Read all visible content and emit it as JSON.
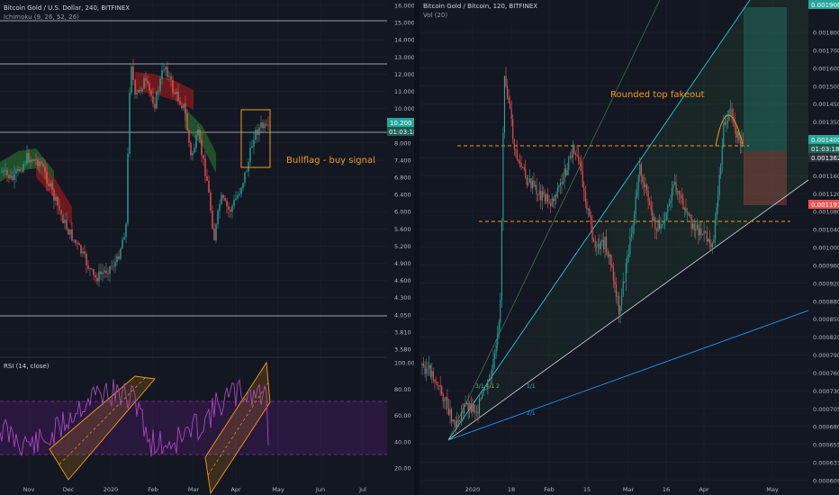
{
  "left_chart": {
    "title": "Bitcoin Gold / U.S. Dollar, 240, BITFINEX",
    "indicator": "Ichimoku (9, 26, 52, 26)",
    "price_axis": [
      "16.000",
      "15.000",
      "14.000",
      "13.000",
      "12.000",
      "11.000",
      "10.000",
      "9.000",
      "8.000",
      "7.400",
      "6.800",
      "6.400",
      "6.000",
      "5.600",
      "5.200",
      "4.900",
      "4.600",
      "4.300",
      "4.050",
      "3.810",
      "3.580"
    ],
    "price_tag": "10.200",
    "countdown": "01:03:18",
    "annotation": "Bullflag - buy signal",
    "rsi_title": "RSI (14, close)",
    "rsi_axis": [
      "100.00",
      "80.00",
      "60.00",
      "40.00",
      "20.00"
    ],
    "time_axis": [
      "Nov",
      "Dec",
      "2020",
      "Feb",
      "Mar",
      "Apr",
      "May",
      "Jun",
      "Jul"
    ]
  },
  "right_chart": {
    "title": "Bitcoin Gold / Bitcoin, 120, BITFINEX",
    "indicator": "Vol (20)",
    "price_axis": [
      "0.001800",
      "0.001700",
      "0.001600",
      "0.001500",
      "0.001450",
      "0.001350",
      "0.001300",
      "0.001240",
      "0.001160",
      "0.001120",
      "0.001080",
      "0.001040",
      "0.001000",
      "0.000960",
      "0.000920",
      "0.000880",
      "0.000850",
      "0.000820",
      "0.000790",
      "0.000760",
      "0.000730",
      "0.000705",
      "0.000680",
      "0.000655",
      "0.000631",
      "0.000609"
    ],
    "top_tag": "0.001906",
    "price_tag": "0.001400",
    "countdown": "01:03:18",
    "price_tag2": "0.001362",
    "stop_tag": "0.001197",
    "annotation": "Rounded top fakeout",
    "fan_labels": [
      "1/1",
      "2/1"
    ],
    "fan_label_steep": "3/1 4/1 2",
    "time_axis": [
      "2020",
      "18",
      "Feb",
      "15",
      "Mar",
      "16",
      "Apr",
      "May"
    ]
  },
  "colors": {
    "background": "#131722",
    "grid": "#1e2230",
    "bull": "#26a69a",
    "bear": "#ef5350",
    "cloud_green": "#2e7d32",
    "cloud_red": "#b71c1c",
    "rsi_line": "#9c27b0",
    "annotation": "#f39c12",
    "fan_blue": "#2196f3",
    "fan_teal": "#26c6da"
  }
}
